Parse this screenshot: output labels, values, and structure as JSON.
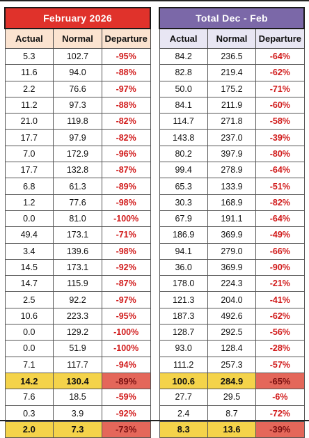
{
  "tables": [
    {
      "title": "February 2026",
      "headers": [
        "Actual",
        "Normal",
        "Departure"
      ],
      "rows": [
        [
          "5.3",
          "102.7",
          "-95%"
        ],
        [
          "11.6",
          "94.0",
          "-88%"
        ],
        [
          "2.2",
          "76.6",
          "-97%"
        ],
        [
          "11.2",
          "97.3",
          "-88%"
        ],
        [
          "21.0",
          "119.8",
          "-82%"
        ],
        [
          "17.7",
          "97.9",
          "-82%"
        ],
        [
          "7.0",
          "172.9",
          "-96%"
        ],
        [
          "17.7",
          "132.8",
          "-87%"
        ],
        [
          "6.8",
          "61.3",
          "-89%"
        ],
        [
          "1.2",
          "77.6",
          "-98%"
        ],
        [
          "0.0",
          "81.0",
          "-100%"
        ],
        [
          "49.4",
          "173.1",
          "-71%"
        ],
        [
          "3.4",
          "139.6",
          "-98%"
        ],
        [
          "14.5",
          "173.1",
          "-92%"
        ],
        [
          "14.7",
          "115.9",
          "-87%"
        ],
        [
          "2.5",
          "92.2",
          "-97%"
        ],
        [
          "10.6",
          "223.3",
          "-95%"
        ],
        [
          "0.0",
          "129.2",
          "-100%"
        ],
        [
          "0.0",
          "51.9",
          "-100%"
        ],
        [
          "7.1",
          "117.7",
          "-94%"
        ],
        [
          "14.2",
          "130.4",
          "-89%"
        ],
        [
          "7.6",
          "18.5",
          "-59%"
        ],
        [
          "0.3",
          "3.9",
          "-92%"
        ],
        [
          "2.0",
          "7.3",
          "-73%"
        ]
      ]
    },
    {
      "title": "Total Dec - Feb",
      "headers": [
        "Actual",
        "Normal",
        "Departure"
      ],
      "rows": [
        [
          "84.2",
          "236.5",
          "-64%"
        ],
        [
          "82.8",
          "219.4",
          "-62%"
        ],
        [
          "50.0",
          "175.2",
          "-71%"
        ],
        [
          "84.1",
          "211.9",
          "-60%"
        ],
        [
          "114.7",
          "271.8",
          "-58%"
        ],
        [
          "143.8",
          "237.0",
          "-39%"
        ],
        [
          "80.2",
          "397.9",
          "-80%"
        ],
        [
          "99.4",
          "278.9",
          "-64%"
        ],
        [
          "65.3",
          "133.9",
          "-51%"
        ],
        [
          "30.3",
          "168.9",
          "-82%"
        ],
        [
          "67.9",
          "191.1",
          "-64%"
        ],
        [
          "186.9",
          "369.9",
          "-49%"
        ],
        [
          "94.1",
          "279.0",
          "-66%"
        ],
        [
          "36.0",
          "369.9",
          "-90%"
        ],
        [
          "178.0",
          "224.3",
          "-21%"
        ],
        [
          "121.3",
          "204.0",
          "-41%"
        ],
        [
          "187.3",
          "492.6",
          "-62%"
        ],
        [
          "128.7",
          "292.5",
          "-56%"
        ],
        [
          "93.0",
          "128.4",
          "-28%"
        ],
        [
          "111.2",
          "257.3",
          "-57%"
        ],
        [
          "100.6",
          "284.9",
          "-65%"
        ],
        [
          "27.7",
          "29.5",
          "-6%"
        ],
        [
          "2.4",
          "8.7",
          "-72%"
        ],
        [
          "8.3",
          "13.6",
          "-39%"
        ]
      ]
    }
  ],
  "highlighted_rows": [
    20,
    23
  ],
  "colors": {
    "feb_header": "#e0322b",
    "total_header": "#7b68a8",
    "highlight_row": "#f4d34a",
    "highlight_departure": "#e4675a",
    "departure_text": "#d11a1a"
  }
}
